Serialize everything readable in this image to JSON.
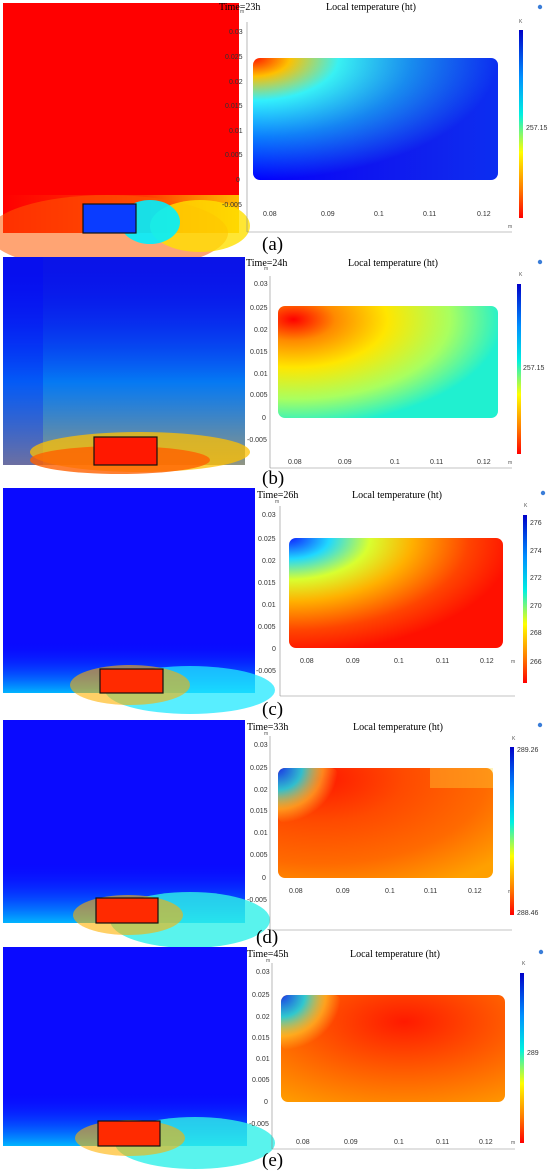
{
  "figure": {
    "panels": [
      {
        "id": "a",
        "caption": "(a)",
        "time_label": "Time=23h",
        "title": "Local temperature (ht)",
        "colorbar": {
          "unit": "K",
          "labels": [
            "257.15"
          ]
        },
        "x_ticks": [
          "0.08",
          "0.09",
          "0.1",
          "0.11",
          "0.12"
        ],
        "y_ticks": [
          "0.03",
          "0.025",
          "0.02",
          "0.015",
          "0.01",
          "0.005",
          "0",
          "-0.005"
        ],
        "x_unit": "m",
        "y_unit": "m"
      },
      {
        "id": "b",
        "caption": "(b)",
        "time_label": "Time=24h",
        "title": "Local temperature (ht)",
        "colorbar": {
          "unit": "K",
          "labels": [
            "257.15"
          ]
        },
        "x_ticks": [
          "0.08",
          "0.09",
          "0.1",
          "0.11",
          "0.12"
        ],
        "y_ticks": [
          "0.03",
          "0.025",
          "0.02",
          "0.015",
          "0.01",
          "0.005",
          "0",
          "-0.005"
        ],
        "x_unit": "m",
        "y_unit": "m"
      },
      {
        "id": "c",
        "caption": "(c)",
        "time_label": "Time=26h",
        "title": "Local temperature (ht)",
        "colorbar": {
          "unit": "K",
          "labels": [
            "276",
            "274",
            "272",
            "270",
            "268",
            "266"
          ]
        },
        "x_ticks": [
          "0.08",
          "0.09",
          "0.1",
          "0.11",
          "0.12"
        ],
        "y_ticks": [
          "0.03",
          "0.025",
          "0.02",
          "0.015",
          "0.01",
          "0.005",
          "0",
          "-0.005"
        ],
        "x_unit": "m",
        "y_unit": "m"
      },
      {
        "id": "d",
        "caption": "(d)",
        "time_label": "Time=33h",
        "title": "Local temperature (ht)",
        "colorbar": {
          "unit": "K",
          "labels": [
            "289.26",
            "288.46"
          ]
        },
        "x_ticks": [
          "0.08",
          "0.09",
          "0.1",
          "0.11",
          "0.12"
        ],
        "y_ticks": [
          "0.03",
          "0.025",
          "0.02",
          "0.015",
          "0.01",
          "0.005",
          "0",
          "-0.005"
        ],
        "x_unit": "m",
        "y_unit": "m"
      },
      {
        "id": "e",
        "caption": "(e)",
        "time_label": "Time=45h",
        "title": "Local temperature (ht)",
        "colorbar": {
          "unit": "K",
          "labels": [
            "289"
          ]
        },
        "x_ticks": [
          "0.08",
          "0.09",
          "0.1",
          "0.11",
          "0.12"
        ],
        "y_ticks": [
          "0.03",
          "0.025",
          "0.02",
          "0.015",
          "0.01",
          "0.005",
          "0",
          "-0.005"
        ],
        "x_unit": "m",
        "y_unit": "m"
      }
    ]
  },
  "chart_data": [
    {
      "type": "heatmap",
      "title": "Local temperature (ht)",
      "time": "Time=23h",
      "xlim": [
        0.075,
        0.125
      ],
      "ylim": [
        -0.008,
        0.032
      ],
      "x_ticks": [
        0.08,
        0.09,
        0.1,
        0.11,
        0.12
      ],
      "y_ticks": [
        0.03,
        0.025,
        0.02,
        0.015,
        0.01,
        0.005,
        0,
        -0.005
      ],
      "colorbar_unit": "K",
      "colorbar_labels": [
        "257.15"
      ],
      "colormap": "rainbow (blue high, red low)"
    },
    {
      "type": "heatmap",
      "title": "Local temperature (ht)",
      "time": "Time=24h",
      "xlim": [
        0.075,
        0.125
      ],
      "ylim": [
        -0.008,
        0.032
      ],
      "x_ticks": [
        0.08,
        0.09,
        0.1,
        0.11,
        0.12
      ],
      "y_ticks": [
        0.03,
        0.025,
        0.02,
        0.015,
        0.01,
        0.005,
        0,
        -0.005
      ],
      "colorbar_unit": "K",
      "colorbar_labels": [
        "257.15"
      ],
      "colormap": "rainbow (blue high, red low)"
    },
    {
      "type": "heatmap",
      "title": "Local temperature (ht)",
      "time": "Time=26h",
      "xlim": [
        0.075,
        0.125
      ],
      "ylim": [
        -0.008,
        0.032
      ],
      "x_ticks": [
        0.08,
        0.09,
        0.1,
        0.11,
        0.12
      ],
      "y_ticks": [
        0.03,
        0.025,
        0.02,
        0.015,
        0.01,
        0.005,
        0,
        -0.005
      ],
      "colorbar_unit": "K",
      "colorbar_labels": [
        276,
        274,
        272,
        270,
        268,
        266
      ],
      "colormap": "rainbow (blue high, red low)"
    },
    {
      "type": "heatmap",
      "title": "Local temperature (ht)",
      "time": "Time=33h",
      "xlim": [
        0.075,
        0.125
      ],
      "ylim": [
        -0.008,
        0.032
      ],
      "x_ticks": [
        0.08,
        0.09,
        0.1,
        0.11,
        0.12
      ],
      "y_ticks": [
        0.03,
        0.025,
        0.02,
        0.015,
        0.01,
        0.005,
        0,
        -0.005
      ],
      "colorbar_unit": "K",
      "colorbar_labels": [
        289.26,
        288.46
      ],
      "colormap": "rainbow (blue high, red low)"
    },
    {
      "type": "heatmap",
      "title": "Local temperature (ht)",
      "time": "Time=45h",
      "xlim": [
        0.075,
        0.125
      ],
      "ylim": [
        -0.008,
        0.032
      ],
      "x_ticks": [
        0.08,
        0.09,
        0.1,
        0.11,
        0.12
      ],
      "y_ticks": [
        0.03,
        0.025,
        0.02,
        0.015,
        0.01,
        0.005,
        0,
        -0.005
      ],
      "colorbar_unit": "K",
      "colorbar_labels": [
        "289"
      ],
      "colormap": "rainbow (blue high, red low)"
    }
  ],
  "colors": {
    "red": "#ff0000",
    "orange": "#ff7a00",
    "yellow": "#ffff00",
    "cyan": "#00e5ff",
    "blue": "#0000ff",
    "navy": "#0a1aa8"
  }
}
